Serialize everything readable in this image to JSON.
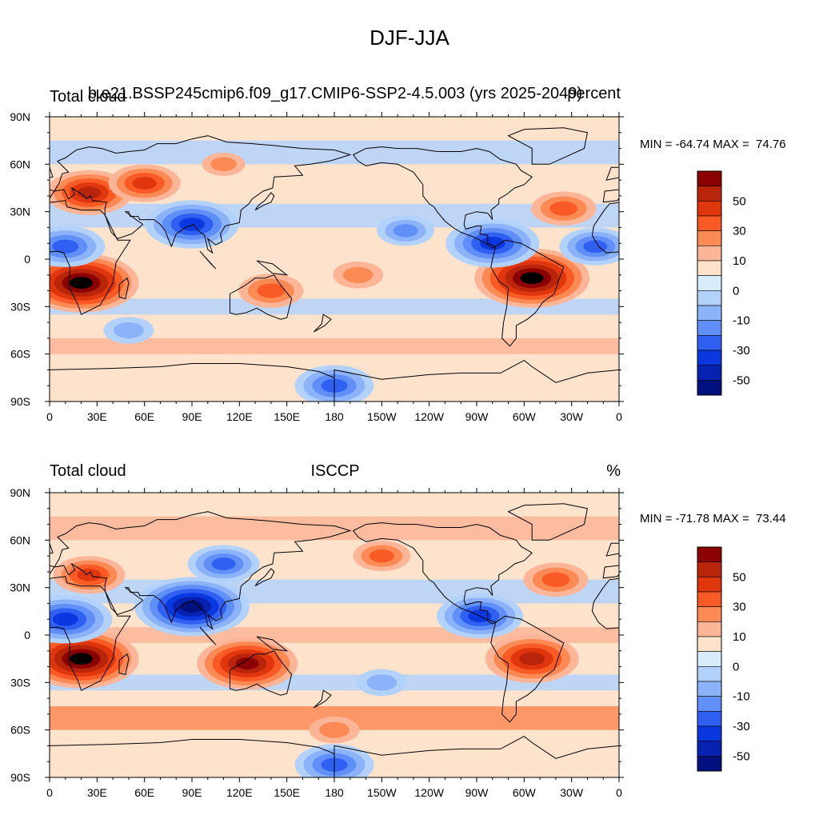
{
  "figure": {
    "title": "DJF-JJA"
  },
  "panels": [
    {
      "left_label": "Total cloud",
      "center_label": "b.e21.BSSP245cmip6.f09_g17.CMIP6-SSP2-4.5.003 (yrs 2025-2049)",
      "right_label": "percent",
      "stats": "MIN = -64.74 MAX =  74.76"
    },
    {
      "left_label": "Total cloud",
      "center_label": "ISCCP",
      "right_label": "%",
      "stats": "MIN = -71.78 MAX =  73.44"
    }
  ],
  "colorbar": {
    "labels": [
      "50",
      "30",
      "10",
      "0",
      "-10",
      "-30",
      "-50"
    ],
    "colors": [
      "#8b0000",
      "#b8250a",
      "#e0360e",
      "#fa5a25",
      "#fc8a55",
      "#fdb598",
      "#fde2cc",
      "#d9ecfc",
      "#b3d2fb",
      "#8cb2fa",
      "#5f8ff7",
      "#2f60f2",
      "#0a37e0",
      "#0722b0",
      "#00107e"
    ]
  },
  "chart_data": [
    {
      "type": "heatmap",
      "title": "b.e21.BSSP245cmip6.f09_g17.CMIP6-SSP2-4.5.003 (yrs 2025-2049)",
      "variable": "Total cloud",
      "units": "percent",
      "x_ticks": [
        "0",
        "30E",
        "60E",
        "90E",
        "120E",
        "150E",
        "180",
        "150W",
        "120W",
        "90W",
        "60W",
        "30W",
        "0"
      ],
      "y_ticks": [
        "90N",
        "60N",
        "30N",
        "0",
        "30S",
        "60S",
        "90S"
      ],
      "xlim": [
        0,
        360
      ],
      "ylim": [
        -90,
        90
      ],
      "levels": [
        -60,
        -50,
        -40,
        -30,
        -20,
        -10,
        -5,
        0,
        5,
        10,
        20,
        30,
        40,
        50,
        60
      ],
      "min": -64.74,
      "max": 74.76,
      "features": [
        {
          "lon": 20,
          "lat": -15,
          "value": 60
        },
        {
          "lon": 305,
          "lat": -12,
          "value": 60
        },
        {
          "lon": 25,
          "lat": 42,
          "value": 40
        },
        {
          "lon": 60,
          "lat": 48,
          "value": 30
        },
        {
          "lon": 90,
          "lat": 22,
          "value": -45
        },
        {
          "lon": 280,
          "lat": 10,
          "value": -45
        },
        {
          "lon": 10,
          "lat": 8,
          "value": -35
        },
        {
          "lon": 345,
          "lat": 8,
          "value": -30
        },
        {
          "lon": 225,
          "lat": 18,
          "value": -20
        },
        {
          "lon": 140,
          "lat": -20,
          "value": 25
        },
        {
          "lon": 195,
          "lat": -10,
          "value": 15
        },
        {
          "lon": 325,
          "lat": 32,
          "value": 25
        },
        {
          "lon": 110,
          "lat": 60,
          "value": 10
        },
        {
          "lon": 180,
          "lat": -80,
          "value": -35
        },
        {
          "lon": 50,
          "lat": -45,
          "value": -15
        }
      ]
    },
    {
      "type": "heatmap",
      "title": "ISCCP",
      "variable": "Total cloud",
      "units": "%",
      "x_ticks": [
        "0",
        "30E",
        "60E",
        "90E",
        "120E",
        "150E",
        "180",
        "150W",
        "120W",
        "90W",
        "60W",
        "30W",
        "0"
      ],
      "y_ticks": [
        "90N",
        "60N",
        "30N",
        "0",
        "30S",
        "60S",
        "90S"
      ],
      "xlim": [
        0,
        360
      ],
      "ylim": [
        -90,
        90
      ],
      "levels": [
        -60,
        -50,
        -40,
        -30,
        -20,
        -10,
        -5,
        0,
        5,
        10,
        20,
        30,
        40,
        50,
        60
      ],
      "min": -71.78,
      "max": 73.44,
      "features": [
        {
          "lon": 20,
          "lat": -15,
          "value": 60
        },
        {
          "lon": 125,
          "lat": -18,
          "value": 50
        },
        {
          "lon": 305,
          "lat": -15,
          "value": 45
        },
        {
          "lon": 90,
          "lat": 18,
          "value": -60
        },
        {
          "lon": 10,
          "lat": 10,
          "value": -45
        },
        {
          "lon": 272,
          "lat": 12,
          "value": -40
        },
        {
          "lon": 110,
          "lat": 45,
          "value": -30
        },
        {
          "lon": 25,
          "lat": 38,
          "value": 30
        },
        {
          "lon": 320,
          "lat": 35,
          "value": 25
        },
        {
          "lon": 180,
          "lat": -60,
          "value": 15
        },
        {
          "lon": 180,
          "lat": -82,
          "value": -35
        },
        {
          "lon": 210,
          "lat": -30,
          "value": -15
        },
        {
          "lon": 210,
          "lat": 50,
          "value": 20
        }
      ]
    }
  ]
}
